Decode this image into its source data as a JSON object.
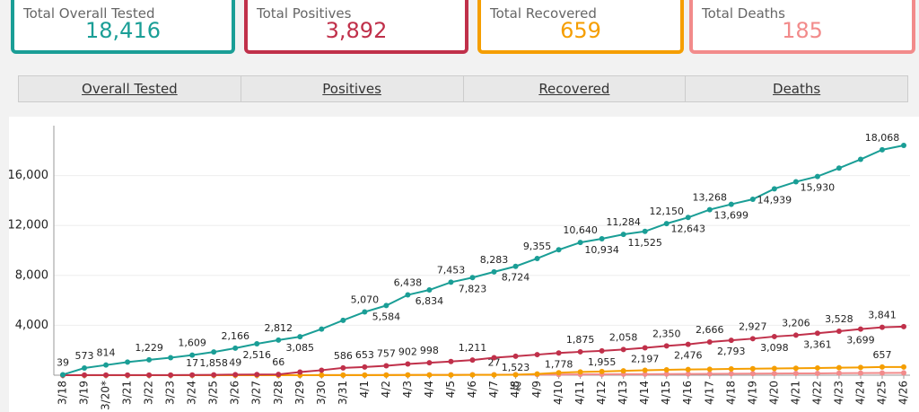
{
  "cards": [
    {
      "label": "Total Overall Tested",
      "value": "18,416",
      "color": "#1a9e96"
    },
    {
      "label": "Total Positives",
      "value": "3,892",
      "color": "#c0304a"
    },
    {
      "label": "Total Recovered",
      "value": "659",
      "color": "#f59e00"
    },
    {
      "label": "Total Deaths",
      "value": "185",
      "color": "#f28b8b"
    }
  ],
  "tabs": [
    "Overall Tested",
    "Positives",
    "Recovered",
    "Deaths"
  ],
  "chart_data": {
    "type": "line",
    "categories": [
      "3/18",
      "3/19",
      "3/20*",
      "3/21",
      "3/22",
      "3/23",
      "3/24",
      "3/25",
      "3/26",
      "3/27",
      "3/28",
      "3/29",
      "3/30",
      "3/31",
      "4/1",
      "4/2",
      "4/3",
      "4/4",
      "4/5",
      "4/6",
      "4/7",
      "4/8",
      "4/9",
      "4/10",
      "4/11",
      "4/12",
      "4/13",
      "4/14",
      "4/15",
      "4/16",
      "4/17",
      "4/18",
      "4/19",
      "4/20",
      "4/21",
      "4/22",
      "4/23",
      "4/24",
      "4/25",
      "4/26"
    ],
    "ylim": [
      0,
      20000
    ],
    "yticks": [
      {
        "value": 4000,
        "label": "4,000"
      },
      {
        "value": 8000,
        "label": "8,000"
      },
      {
        "value": 12000,
        "label": "12,000"
      },
      {
        "value": 16000,
        "label": "16,000"
      }
    ],
    "grid": true,
    "series": [
      {
        "color": "#1a9e96",
        "values": [
          39,
          573,
          814,
          1050,
          1229,
          1400,
          1609,
          1858,
          2166,
          2516,
          2812,
          3085,
          3700,
          4400,
          5070,
          5584,
          6438,
          6834,
          7453,
          7823,
          8283,
          8724,
          9355,
          10050,
          10640,
          10934,
          11284,
          11525,
          12150,
          12643,
          13268,
          13699,
          14100,
          14939,
          15500,
          15930,
          16600,
          17300,
          18068,
          18416
        ],
        "value_labels": [
          "39",
          "573",
          "814",
          null,
          "1,229",
          null,
          "1,609",
          "1,858",
          "2,166",
          "2,516",
          "2,812",
          "3,085",
          null,
          null,
          "5,070",
          "5,584",
          "6,438",
          "6,834",
          "7,453",
          "7,823",
          "8,283",
          "8,724",
          "9,355",
          null,
          "10,640",
          "10,934",
          "11,284",
          "11,525",
          "12,150",
          "12,643",
          "13,268",
          "13,699",
          null,
          "14,939",
          null,
          "15,930",
          null,
          null,
          "18,068",
          null
        ]
      },
      {
        "color": "#c0304a",
        "values": [
          3,
          5,
          6,
          7,
          9,
          12,
          17,
          30,
          49,
          55,
          66,
          250,
          400,
          586,
          653,
          757,
          902,
          998,
          1100,
          1211,
          1400,
          1523,
          1650,
          1778,
          1875,
          1955,
          2058,
          2197,
          2350,
          2476,
          2666,
          2793,
          2927,
          3098,
          3206,
          3361,
          3528,
          3699,
          3841,
          3892
        ],
        "value_labels": [
          null,
          null,
          null,
          null,
          null,
          null,
          "17",
          null,
          "49",
          null,
          "66",
          null,
          null,
          "586",
          "653",
          "757",
          "902",
          "998",
          null,
          "1,211",
          null,
          "1,523",
          null,
          "1,778",
          "1,875",
          "1,955",
          "2,058",
          "2,197",
          "2,350",
          "2,476",
          "2,666",
          "2,793",
          "2,927",
          "3,098",
          "3,206",
          "3,361",
          "3,528",
          "3,699",
          "3,841",
          null
        ]
      },
      {
        "color": "#f59e00",
        "values": [
          0,
          0,
          0,
          0,
          0,
          0,
          0,
          0,
          0,
          0,
          0,
          3,
          5,
          8,
          10,
          12,
          15,
          18,
          20,
          23,
          27,
          32,
          100,
          200,
          260,
          300,
          350,
          400,
          430,
          460,
          480,
          500,
          520,
          540,
          560,
          580,
          600,
          620,
          657,
          659
        ],
        "value_labels": [
          null,
          null,
          null,
          null,
          null,
          null,
          null,
          null,
          null,
          null,
          null,
          null,
          null,
          null,
          null,
          null,
          null,
          null,
          null,
          null,
          "27",
          "32",
          null,
          null,
          null,
          null,
          null,
          null,
          null,
          null,
          null,
          null,
          null,
          null,
          null,
          null,
          null,
          null,
          "657",
          null
        ]
      },
      {
        "color": "#f28b8b",
        "values": [
          0,
          0,
          0,
          0,
          0,
          1,
          1,
          1,
          2,
          2,
          3,
          4,
          6,
          9,
          12,
          16,
          20,
          25,
          30,
          35,
          40,
          46,
          52,
          58,
          64,
          70,
          78,
          85,
          92,
          100,
          108,
          116,
          124,
          132,
          140,
          148,
          158,
          168,
          178,
          185
        ]
      }
    ]
  }
}
